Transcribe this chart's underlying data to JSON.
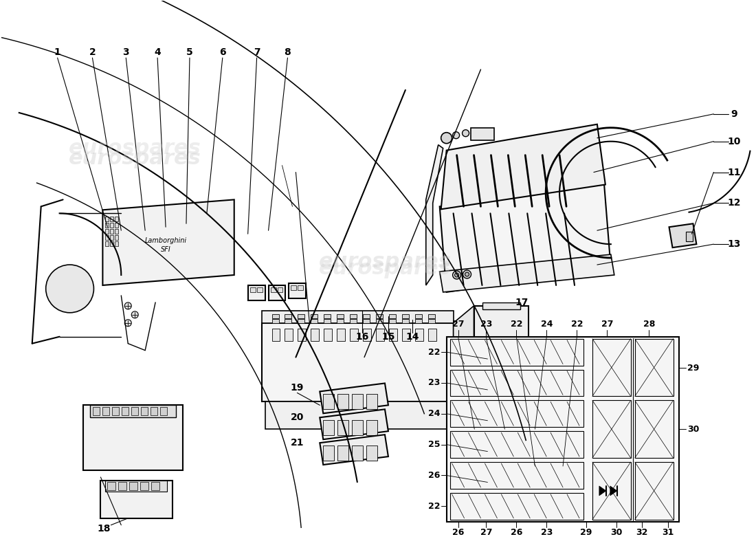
{
  "bg_color": "#ffffff",
  "line_color": "#000000",
  "watermark_text": "eurospares",
  "part_numbers_left": [
    "1",
    "2",
    "3",
    "4",
    "5",
    "6",
    "7",
    "8"
  ],
  "part_numbers_right": [
    "9",
    "10",
    "11",
    "12",
    "13"
  ],
  "part_numbers_mid": [
    "14",
    "15",
    "16",
    "17"
  ],
  "part_numbers_bottom_left": [
    "18",
    "19",
    "20",
    "21"
  ],
  "fuse_top": [
    "27",
    "23",
    "22",
    "24",
    "22",
    "27",
    "28"
  ],
  "fuse_left": [
    "22",
    "23",
    "24",
    "25",
    "26",
    "22"
  ],
  "fuse_bottom": [
    "26",
    "27",
    "26",
    "23",
    "29",
    "30",
    "32",
    "31"
  ],
  "fuse_right": [
    "29",
    "30"
  ]
}
